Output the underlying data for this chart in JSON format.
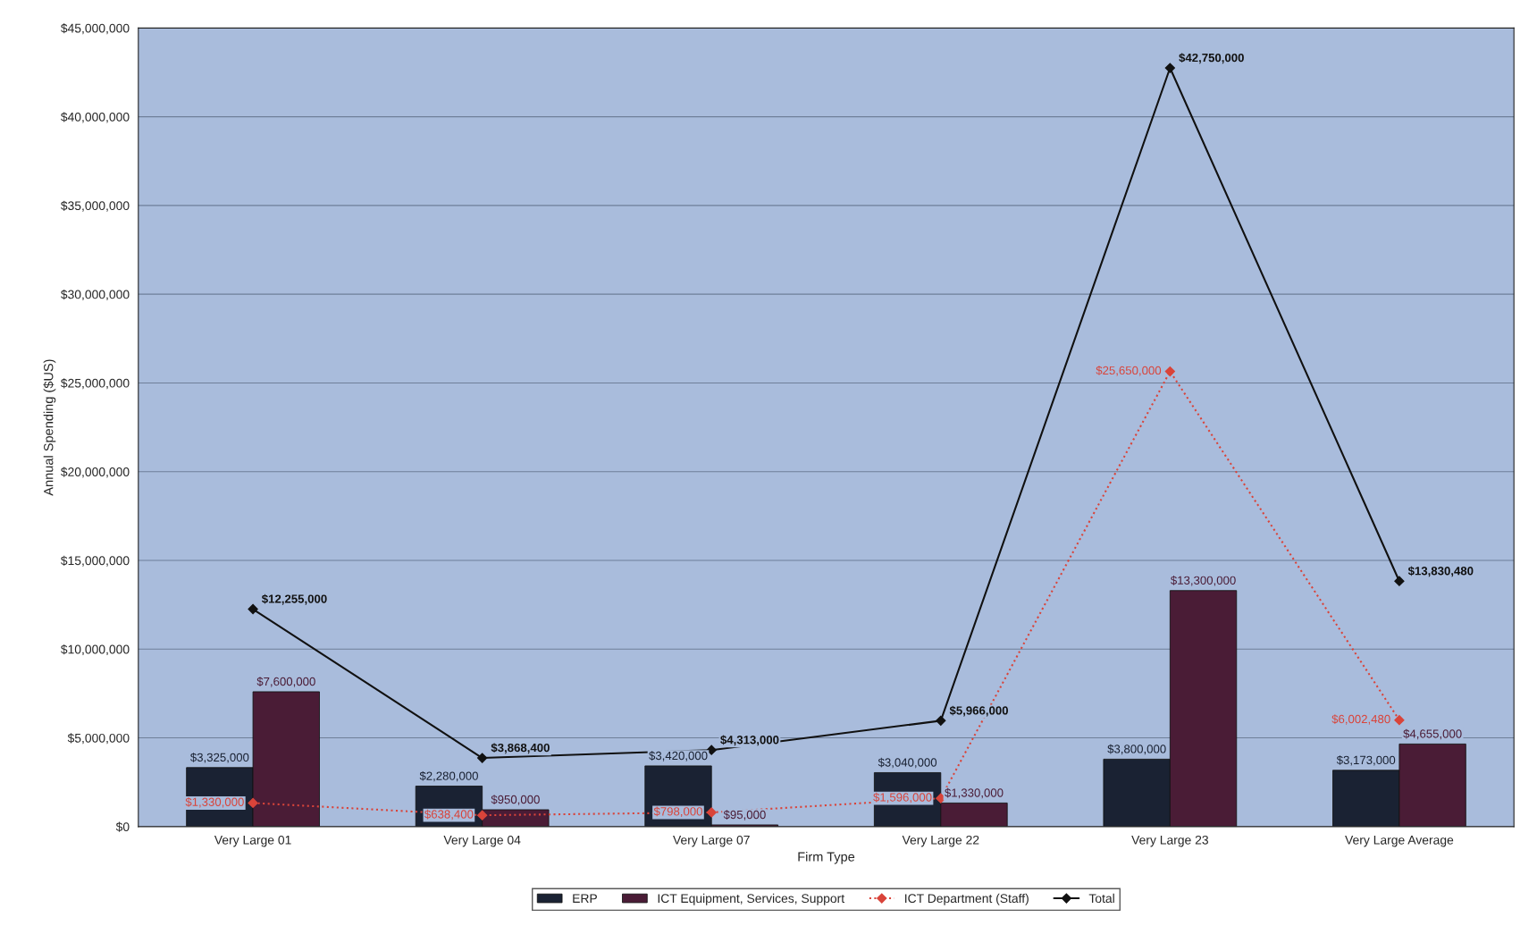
{
  "chart_data": {
    "type": "bar",
    "xlabel": "Firm Type",
    "ylabel": "Annual Spending ($US)",
    "categories": [
      "Very Large 01",
      "Very Large 04",
      "Very Large 07",
      "Very Large 22",
      "Very Large 23",
      "Very Large Average"
    ],
    "series": [
      {
        "name": "ERP",
        "color": "#1a2233",
        "values": [
          3325000,
          2280000,
          3420000,
          3040000,
          3800000,
          3173000
        ],
        "value_labels": [
          "$3,325,000",
          "$2,280,000",
          "$3,420,000",
          "$3,040,000",
          "$3,800,000",
          "$3,173,000"
        ]
      },
      {
        "name": "ICT Equipment, Services, Support",
        "color": "#4a1c36",
        "values": [
          7600000,
          950000,
          95000,
          1330000,
          13300000,
          4655000
        ],
        "value_labels": [
          "$7,600,000",
          "$950,000",
          "$95,000",
          "$1,330,000",
          "$13,300,000",
          "$4,655,000"
        ]
      },
      {
        "name": "ICT Department (Staff)",
        "type": "line",
        "color": "#d9443a",
        "marker": "diamond",
        "line_style": "dotted",
        "values": [
          1330000,
          638400,
          798000,
          1596000,
          25650000,
          6002480
        ],
        "value_labels": [
          "$1,330,000",
          "$638,400",
          "$798,000",
          "$1,596,000",
          "$25,650,000",
          "$6,002,480"
        ]
      },
      {
        "name": "Total",
        "type": "line",
        "color": "#111111",
        "marker": "diamond",
        "line_style": "solid",
        "values": [
          12255000,
          3868400,
          4313000,
          5966000,
          42750000,
          13830480
        ],
        "value_labels": [
          "$12,255,000",
          "$3,868,400",
          "$4,313,000",
          "$5,966,000",
          "$42,750,000",
          "$13,830,480"
        ]
      }
    ],
    "ylim": [
      0,
      45000000
    ],
    "yticks": [
      {
        "value": 0,
        "label": "$0"
      },
      {
        "value": 5000000,
        "label": "$5,000,000"
      },
      {
        "value": 10000000,
        "label": "$10,000,000"
      },
      {
        "value": 15000000,
        "label": "$15,000,000"
      },
      {
        "value": 20000000,
        "label": "$20,000,000"
      },
      {
        "value": 25000000,
        "label": "$25,000,000"
      },
      {
        "value": 30000000,
        "label": "$30,000,000"
      },
      {
        "value": 35000000,
        "label": "$35,000,000"
      },
      {
        "value": 40000000,
        "label": "$40,000,000"
      },
      {
        "value": 45000000,
        "label": "$45,000,000"
      }
    ],
    "grid": "y",
    "legend": "bottom"
  }
}
